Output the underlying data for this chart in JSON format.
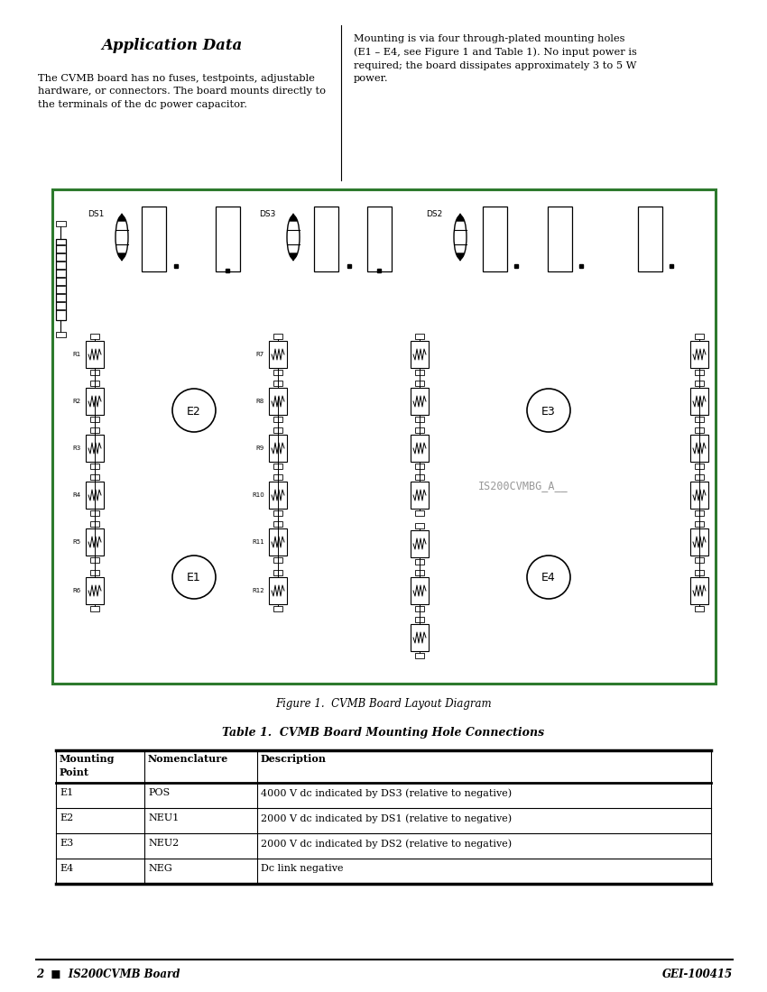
{
  "title": "Application Data",
  "left_para": "The CVMB board has no fuses, testpoints, adjustable\nhardware, or connectors. The board mounts directly to\nthe terminals of the dc power capacitor.",
  "right_para": "Mounting is via four through-plated mounting holes\n(E1 – E4, see Figure 1 and Table 1). No input power is\nrequired; the board dissipates approximately 3 to 5 W\npower.",
  "figure_caption": "Figure 1.  CVMB Board Layout Diagram",
  "table_title": "Table 1.  CVMB Board Mounting Hole Connections",
  "table_headers": [
    "Mounting\nPoint",
    "Nomenclature",
    "Description"
  ],
  "table_rows": [
    [
      "E1",
      "POS",
      "4000 V dc indicated by DS3 (relative to negative)"
    ],
    [
      "E2",
      "NEU1",
      "2000 V dc indicated by DS1 (relative to negative)"
    ],
    [
      "E3",
      "NEU2",
      "2000 V dc indicated by DS2 (relative to negative)"
    ],
    [
      "E4",
      "NEG",
      "Dc link negative"
    ]
  ],
  "footer_left": "2  ■  IS200CVMB Board",
  "footer_right": "GEI-100415",
  "board_label": "IS200CVMBG_A__",
  "bg_color": "#ffffff",
  "border_color": "#2d7a2d"
}
